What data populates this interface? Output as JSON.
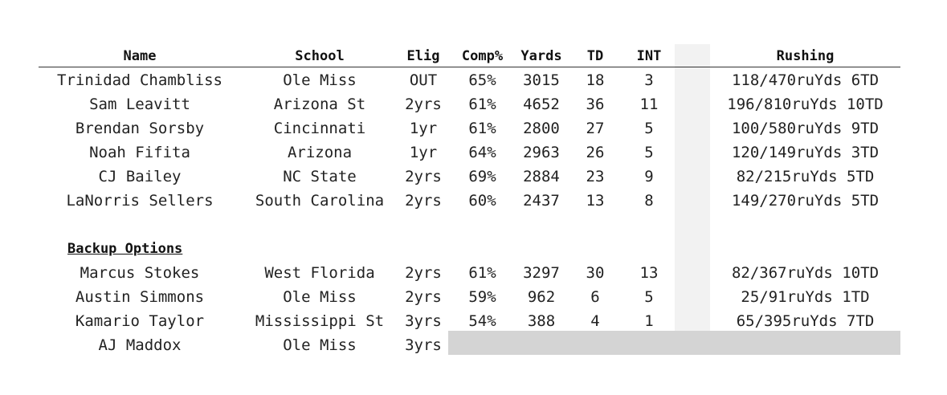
{
  "headers": {
    "name": "Name",
    "school": "School",
    "elig": "Elig",
    "comp": "Comp%",
    "yards": "Yards",
    "td": "TD",
    "int": "INT",
    "rushing": "Rushing"
  },
  "section_label": "Backup Options",
  "colors": {
    "grey_column": "#f2f2f2",
    "grey_block": "#d4d4d4",
    "rule": "#333333"
  },
  "starters": [
    {
      "name": "Trinidad Chambliss",
      "school": "Ole Miss",
      "elig": "OUT",
      "comp": "65%",
      "yards": "3015",
      "td": "18",
      "int": "3",
      "rushing": "118/470ruYds 6TD"
    },
    {
      "name": "Sam Leavitt",
      "school": "Arizona St",
      "elig": "2yrs",
      "comp": "61%",
      "yards": "4652",
      "td": "36",
      "int": "11",
      "rushing": "196/810ruYds 10TD"
    },
    {
      "name": "Brendan Sorsby",
      "school": "Cincinnati",
      "elig": "1yr",
      "comp": "61%",
      "yards": "2800",
      "td": "27",
      "int": "5",
      "rushing": "100/580ruYds 9TD"
    },
    {
      "name": "Noah Fifita",
      "school": "Arizona",
      "elig": "1yr",
      "comp": "64%",
      "yards": "2963",
      "td": "26",
      "int": "5",
      "rushing": "120/149ruYds 3TD"
    },
    {
      "name": "CJ Bailey",
      "school": "NC State",
      "elig": "2yrs",
      "comp": "69%",
      "yards": "2884",
      "td": "23",
      "int": "9",
      "rushing": "82/215ruYds 5TD"
    },
    {
      "name": "LaNorris Sellers",
      "school": "South Carolina",
      "elig": "2yrs",
      "comp": "60%",
      "yards": "2437",
      "td": "13",
      "int": "8",
      "rushing": "149/270ruYds 5TD"
    }
  ],
  "backups": [
    {
      "name": "Marcus Stokes",
      "school": "West Florida",
      "elig": "2yrs",
      "comp": "61%",
      "yards": "3297",
      "td": "30",
      "int": "13",
      "rushing": "82/367ruYds 10TD"
    },
    {
      "name": "Austin Simmons",
      "school": "Ole Miss",
      "elig": "2yrs",
      "comp": "59%",
      "yards": "962",
      "td": "6",
      "int": "5",
      "rushing": "25/91ruYds 1TD"
    },
    {
      "name": "Kamario Taylor",
      "school": "Mississippi St",
      "elig": "3yrs",
      "comp": "54%",
      "yards": "388",
      "td": "4",
      "int": "1",
      "rushing": "65/395ruYds 7TD"
    },
    {
      "name": "AJ Maddox",
      "school": "Ole Miss",
      "elig": "3yrs"
    }
  ]
}
